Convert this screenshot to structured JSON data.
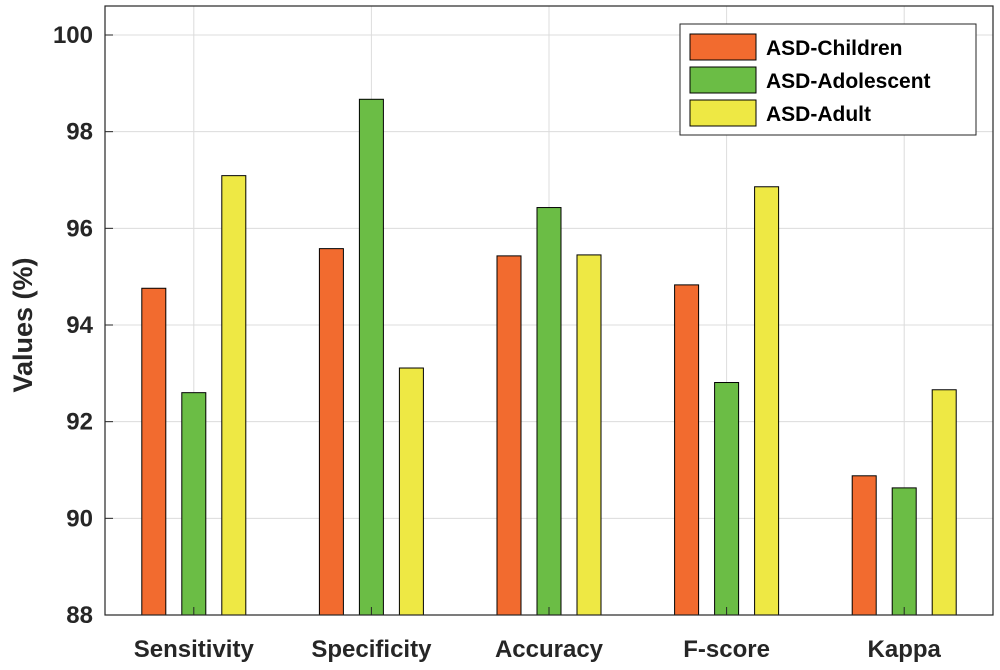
{
  "chart_data": {
    "type": "bar",
    "categories": [
      "Sensitivity",
      "Specificity",
      "Accuracy",
      "F-score",
      "Kappa"
    ],
    "series": [
      {
        "name": "ASD-Children",
        "color": "#f26b2f",
        "values": [
          94.76,
          95.58,
          95.43,
          94.83,
          90.88
        ]
      },
      {
        "name": "ASD-Adolescent",
        "color": "#6bbd45",
        "values": [
          92.6,
          98.67,
          96.43,
          92.81,
          90.63
        ]
      },
      {
        "name": "ASD-Adult",
        "color": "#eee844",
        "values": [
          97.09,
          93.11,
          95.45,
          96.86,
          92.66
        ]
      }
    ],
    "ylabel": "Values (%)",
    "xlabel": "",
    "ylim": [
      88,
      100.6
    ],
    "yticks": [
      88,
      90,
      92,
      94,
      96,
      98,
      100
    ],
    "grid": true,
    "legend_position": "top-right"
  }
}
